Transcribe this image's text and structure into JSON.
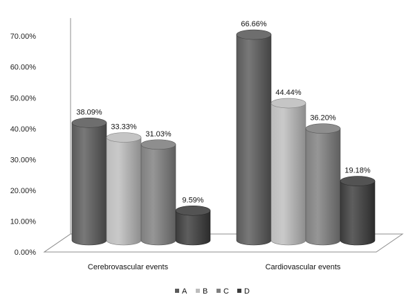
{
  "chart_data": {
    "type": "bar",
    "categories": [
      "Cerebrovascular events",
      "Cardiovascular events"
    ],
    "series": [
      {
        "name": "A",
        "values": [
          38.09,
          66.66
        ],
        "labels": [
          "38.09%",
          "66.66%"
        ],
        "color": "#5a5a5a"
      },
      {
        "name": "B",
        "values": [
          33.33,
          44.44
        ],
        "labels": [
          "33.33%",
          "44.44%"
        ],
        "color": "#bdbdbd"
      },
      {
        "name": "C",
        "values": [
          31.03,
          36.2
        ],
        "labels": [
          "31.03%",
          "36.20%"
        ],
        "color": "#7f7f7f"
      },
      {
        "name": "D",
        "values": [
          9.59,
          19.18
        ],
        "labels": [
          "9.59%",
          "19.18%"
        ],
        "color": "#3b3b3b"
      }
    ],
    "ylim": [
      0,
      70
    ],
    "yticks": [
      "0.00%",
      "10.00%",
      "20.00%",
      "30.00%",
      "40.00%",
      "50.00%",
      "60.00%",
      "70.00%"
    ],
    "grid": false,
    "legend": "bottom",
    "style": "3d-cylinder"
  }
}
